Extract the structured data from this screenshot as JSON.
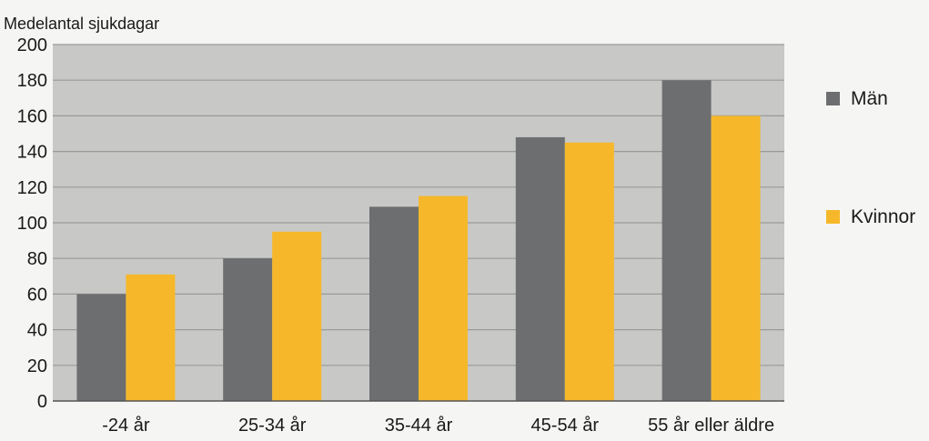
{
  "chart_data": {
    "type": "bar",
    "title": "",
    "ylabel": "Medelantal sjukdagar",
    "xlabel": "",
    "categories": [
      "-24 år",
      "25-34 år",
      "35-44 år",
      "45-54 år",
      "55 år eller  äldre"
    ],
    "series": [
      {
        "name": "Män",
        "color": "#6d6e70",
        "values": [
          60,
          80,
          109,
          148,
          180
        ]
      },
      {
        "name": "Kvinnor",
        "color": "#f6b82a",
        "values": [
          71,
          95,
          115,
          145,
          160
        ]
      }
    ],
    "ylim": [
      0,
      200
    ],
    "yticks": [
      0,
      20,
      40,
      60,
      80,
      100,
      120,
      140,
      160,
      180,
      200
    ],
    "grid": true,
    "legend_position": "right",
    "plot_background": "#c8c8c6",
    "grid_color": "#9a9a98"
  }
}
